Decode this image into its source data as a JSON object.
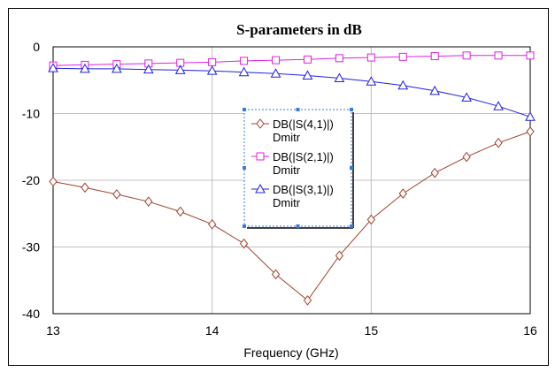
{
  "chart_data": {
    "type": "line",
    "title": "S-parameters in dB",
    "xlabel": "Frequency (GHz)",
    "ylabel": "",
    "xlim": [
      13,
      16
    ],
    "ylim": [
      -40,
      0
    ],
    "x_ticks": [
      "13",
      "14",
      "15",
      "16"
    ],
    "y_ticks": [
      "0",
      "-10",
      "-20",
      "-30",
      "-40"
    ],
    "grid": true,
    "legend_position": "center",
    "x": [
      13.0,
      13.2,
      13.4,
      13.6,
      13.8,
      14.0,
      14.2,
      14.4,
      14.6,
      14.8,
      15.0,
      15.2,
      15.4,
      15.6,
      15.8,
      16.0
    ],
    "series": [
      {
        "name": "DB(|S(4,1)|)",
        "subname": "Dmitr",
        "color": "#a0412d",
        "marker": "diamond",
        "values": [
          -20.2,
          -21.1,
          -22.1,
          -23.2,
          -24.7,
          -26.6,
          -29.5,
          -34.1,
          -38.0,
          -31.3,
          -25.9,
          -22.0,
          -18.9,
          -16.5,
          -14.4,
          -12.7
        ]
      },
      {
        "name": "DB(|S(2,1)|)",
        "subname": "Dmitr",
        "color": "#e020e0",
        "marker": "square",
        "values": [
          -2.8,
          -2.7,
          -2.6,
          -2.5,
          -2.4,
          -2.3,
          -2.1,
          -2.0,
          -1.9,
          -1.7,
          -1.6,
          -1.5,
          -1.4,
          -1.3,
          -1.3,
          -1.3
        ]
      },
      {
        "name": "DB(|S(3,1)|)",
        "subname": "Dmitr",
        "color": "#2020e0",
        "marker": "triangle",
        "values": [
          -3.2,
          -3.3,
          -3.3,
          -3.4,
          -3.5,
          -3.6,
          -3.8,
          -4.0,
          -4.3,
          -4.7,
          -5.2,
          -5.8,
          -6.6,
          -7.6,
          -8.9,
          -10.5
        ]
      }
    ]
  }
}
